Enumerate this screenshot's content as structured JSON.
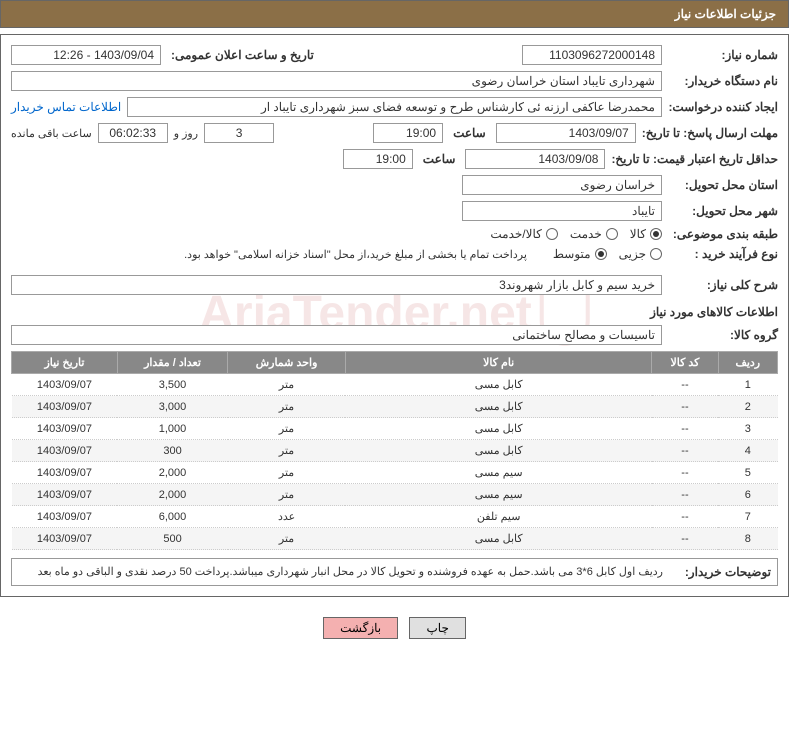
{
  "title": "جزئیات اطلاعات نیاز",
  "watermark_text": "AriaTender.net",
  "fields": {
    "need_number_label": "شماره نیاز:",
    "need_number": "1103096272000148",
    "announce_datetime_label": "تاریخ و ساعت اعلان عمومی:",
    "announce_datetime": "1403/09/04 - 12:26",
    "buyer_org_label": "نام دستگاه خریدار:",
    "buyer_org": "شهرداری تایباد استان خراسان رضوی",
    "requester_label": "ایجاد کننده درخواست:",
    "requester": "محمدرضا عاکفی ارزنه ئی کارشناس طرح و توسعه فضای سبز شهرداری تایباد ار",
    "contact_link": "اطلاعات تماس خریدار",
    "deadline_label": "مهلت ارسال پاسخ: تا تاریخ:",
    "deadline_date": "1403/09/07",
    "time_label": "ساعت",
    "deadline_time": "19:00",
    "days_remaining": "3",
    "days_word": "روز و",
    "countdown": "06:02:33",
    "remaining_label": "ساعت باقی مانده",
    "validity_label": "حداقل تاریخ اعتبار قیمت: تا تاریخ:",
    "validity_date": "1403/09/08",
    "validity_time": "19:00",
    "province_label": "استان محل تحویل:",
    "province": "خراسان رضوی",
    "city_label": "شهر محل تحویل:",
    "city": "تایباد",
    "category_label": "طبقه بندی موضوعی:",
    "cat_kala": "کالا",
    "cat_khedmat": "خدمت",
    "cat_kala_khedmat": "کالا/خدمت",
    "process_label": "نوع فرآیند خرید :",
    "proc_partial": "جزیی",
    "proc_medium": "متوسط",
    "process_note": "پرداخت تمام یا بخشی از مبلغ خرید،از محل \"اسناد خزانه اسلامی\" خواهد بود.",
    "summary_label": "شرح کلی نیاز:",
    "summary": "خرید سیم و کابل بازار شهروند3",
    "goods_section_title": "اطلاعات کالاهای مورد نیاز",
    "group_label": "گروه کالا:",
    "group": "تاسیسات و مصالح ساختمانی",
    "buyer_notes_label": "توضیحات خریدار:",
    "buyer_notes": "ردیف اول کابل 6*3 می باشد.حمل به عهده فروشنده و تحویل کالا در محل انبار شهرداری میباشد.پرداخت 50 درصد نقدی و الباقی دو ماه بعد"
  },
  "table": {
    "headers": {
      "row": "ردیف",
      "code": "کد کالا",
      "name": "نام کالا",
      "unit": "واحد شمارش",
      "qty": "تعداد / مقدار",
      "date": "تاریخ نیاز"
    },
    "rows": [
      {
        "n": "1",
        "code": "--",
        "name": "کابل مسی",
        "unit": "متر",
        "qty": "3,500",
        "date": "1403/09/07"
      },
      {
        "n": "2",
        "code": "--",
        "name": "کابل مسی",
        "unit": "متر",
        "qty": "3,000",
        "date": "1403/09/07"
      },
      {
        "n": "3",
        "code": "--",
        "name": "کابل مسی",
        "unit": "متر",
        "qty": "1,000",
        "date": "1403/09/07"
      },
      {
        "n": "4",
        "code": "--",
        "name": "کابل مسی",
        "unit": "متر",
        "qty": "300",
        "date": "1403/09/07"
      },
      {
        "n": "5",
        "code": "--",
        "name": "سیم مسی",
        "unit": "متر",
        "qty": "2,000",
        "date": "1403/09/07"
      },
      {
        "n": "6",
        "code": "--",
        "name": "سیم مسی",
        "unit": "متر",
        "qty": "2,000",
        "date": "1403/09/07"
      },
      {
        "n": "7",
        "code": "--",
        "name": "سیم تلفن",
        "unit": "عدد",
        "qty": "6,000",
        "date": "1403/09/07"
      },
      {
        "n": "8",
        "code": "--",
        "name": "کابل مسی",
        "unit": "متر",
        "qty": "500",
        "date": "1403/09/07"
      }
    ]
  },
  "buttons": {
    "print": "چاپ",
    "back": "بازگشت"
  },
  "colors": {
    "title_bg": "#8b6f47",
    "header_bg": "#888888",
    "back_btn_bg": "#f4b0b0",
    "watermark": "rgba(180,50,50,0.12)"
  }
}
